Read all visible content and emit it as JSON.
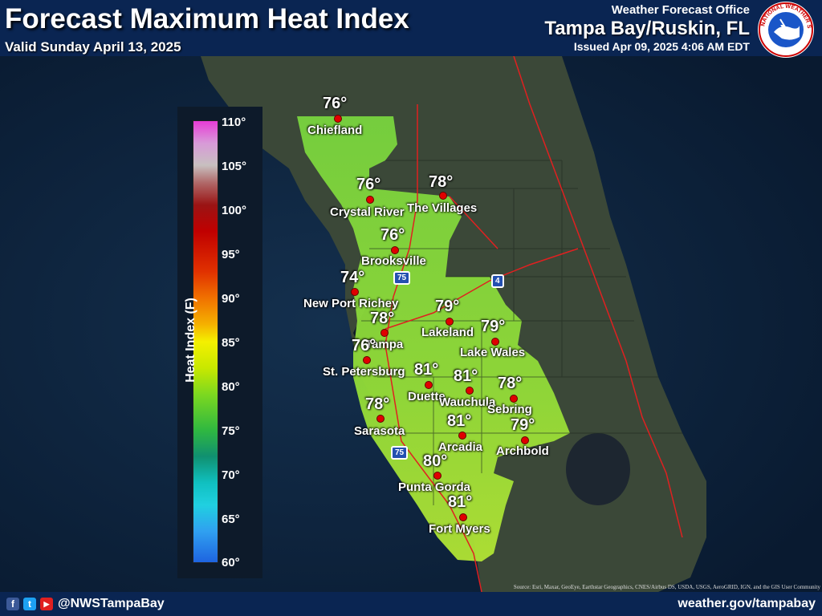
{
  "header": {
    "title": "Forecast Maximum Heat Index",
    "valid": "Valid Sunday April 13, 2025",
    "office_label": "Weather Forecast Office",
    "office_name": "Tampa Bay/Ruskin, FL",
    "issued": "Issued Apr 09, 2025 4:06 AM EDT",
    "logo_text": "NATIONAL WEATHER SERVICE"
  },
  "legend": {
    "title": "Heat Index (F)",
    "ticks": [
      "110°",
      "105°",
      "100°",
      "95°",
      "90°",
      "85°",
      "80°",
      "75°",
      "70°",
      "65°",
      "60°"
    ]
  },
  "cities": [
    {
      "name": "Chiefland",
      "temp": "76°"
    },
    {
      "name": "Crystal River",
      "temp": "76°"
    },
    {
      "name": "The Villages",
      "temp": "78°"
    },
    {
      "name": "Brooksville",
      "temp": "76°"
    },
    {
      "name": "New Port Richey",
      "temp": "74°"
    },
    {
      "name": "Tampa",
      "temp": "78°"
    },
    {
      "name": "St. Petersburg",
      "temp": "76°"
    },
    {
      "name": "Lakeland",
      "temp": "79°"
    },
    {
      "name": "Lake Wales",
      "temp": "79°"
    },
    {
      "name": "Duette",
      "temp": "81°"
    },
    {
      "name": "Wauchula",
      "temp": "81°"
    },
    {
      "name": "Sebring",
      "temp": "78°"
    },
    {
      "name": "Sarasota",
      "temp": "78°"
    },
    {
      "name": "Arcadia",
      "temp": "81°"
    },
    {
      "name": "Archbold",
      "temp": "79°"
    },
    {
      "name": "Punta Gorda",
      "temp": "80°"
    },
    {
      "name": "Fort Myers",
      "temp": "81°"
    }
  ],
  "highways": {
    "i75_a": "75",
    "i75_b": "75",
    "i4": "4"
  },
  "attribution": "Source: Esri, Maxar, GeoEye, Earthstar Geographics, CNES/Airbus DS, USDA, USGS, AeroGRID, IGN, and the GIS User Community",
  "footer": {
    "facebook": "f",
    "twitter": "t",
    "youtube": "▶",
    "handle": "@NWSTampaBay",
    "website": "weather.gov/tampabay"
  },
  "colors": {
    "header_bg": "#0a2552",
    "ocean": "#0b1e38",
    "land": "#3a4636",
    "forecast_fill": "#7fd640",
    "city_dot": "#e00000",
    "road": "#e02020"
  }
}
